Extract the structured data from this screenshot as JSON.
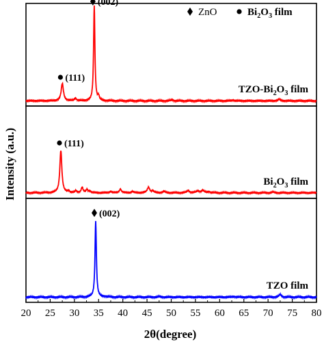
{
  "chart_data": {
    "type": "line",
    "xlabel": "2θ(degree)",
    "ylabel": "Intensity (a.u.)",
    "xlim": [
      20,
      80
    ],
    "x_ticks": [
      20,
      25,
      30,
      35,
      40,
      45,
      50,
      55,
      60,
      65,
      70,
      75,
      80
    ],
    "legend": {
      "position": "top-right",
      "entries": [
        {
          "marker": "diamond",
          "label": "ZnO"
        },
        {
          "marker": "circle",
          "label_main": "Bi",
          "label_sub": "2",
          "label_tail": "O",
          "label_sub2": "3",
          "label_end": " film"
        }
      ]
    },
    "panels": [
      {
        "color": "#ff0000",
        "label": {
          "main": "TZO-Bi",
          "sub": "2",
          "tail": "O",
          "sub2": "3",
          "end": " film"
        },
        "ylim": [
          0,
          1
        ],
        "baseline": 0.05,
        "peaks": [
          {
            "x": 27.5,
            "h": 0.17,
            "w": 0.28
          },
          {
            "x": 30.2,
            "h": 0.025,
            "w": 0.25
          },
          {
            "x": 34.1,
            "h": 0.93,
            "w": 0.16
          },
          {
            "x": 35.0,
            "h": 0.04,
            "w": 0.18
          },
          {
            "x": 50.2,
            "h": 0.01,
            "w": 0.3
          },
          {
            "x": 62.8,
            "h": 0.008,
            "w": 0.3
          },
          {
            "x": 72.3,
            "h": 0.015,
            "w": 0.3
          }
        ],
        "annotations": [
          {
            "x": 27.4,
            "marker": "circle",
            "text": "(111)",
            "y": 0.28
          },
          {
            "x": 34.1,
            "marker": "diamond",
            "text": "(002)",
            "y": 1.02
          }
        ]
      },
      {
        "color": "#ff0000",
        "label": {
          "main": "Bi",
          "sub": "2",
          "tail": "O",
          "sub2": "3",
          "end": " film"
        },
        "ylim": [
          0,
          1
        ],
        "baseline": 0.06,
        "peaks": [
          {
            "x": 27.2,
            "h": 0.46,
            "w": 0.25
          },
          {
            "x": 28.8,
            "h": 0.02,
            "w": 0.2
          },
          {
            "x": 30.3,
            "h": 0.02,
            "w": 0.2
          },
          {
            "x": 31.6,
            "h": 0.06,
            "w": 0.22
          },
          {
            "x": 32.6,
            "h": 0.035,
            "w": 0.22
          },
          {
            "x": 33.2,
            "h": 0.02,
            "w": 0.2
          },
          {
            "x": 37.5,
            "h": 0.015,
            "w": 0.25
          },
          {
            "x": 39.5,
            "h": 0.04,
            "w": 0.25
          },
          {
            "x": 42.0,
            "h": 0.015,
            "w": 0.25
          },
          {
            "x": 45.3,
            "h": 0.06,
            "w": 0.3
          },
          {
            "x": 46.2,
            "h": 0.02,
            "w": 0.25
          },
          {
            "x": 48.5,
            "h": 0.015,
            "w": 0.3
          },
          {
            "x": 53.5,
            "h": 0.025,
            "w": 0.3
          },
          {
            "x": 55.5,
            "h": 0.02,
            "w": 0.35
          },
          {
            "x": 56.5,
            "h": 0.025,
            "w": 0.35
          },
          {
            "x": 57.8,
            "h": 0.012,
            "w": 0.3
          },
          {
            "x": 71.0,
            "h": 0.008,
            "w": 0.3
          }
        ],
        "annotations": [
          {
            "x": 27.2,
            "marker": "circle",
            "text": "(111)",
            "y": 0.6
          }
        ]
      },
      {
        "color": "#0000ff",
        "label": {
          "main": "TZO film",
          "sub": "",
          "tail": "",
          "sub2": "",
          "end": ""
        },
        "ylim": [
          0,
          1
        ],
        "baseline": 0.05,
        "peaks": [
          {
            "x": 34.4,
            "h": 0.73,
            "w": 0.17
          },
          {
            "x": 36.3,
            "h": 0.006,
            "w": 0.3
          },
          {
            "x": 47.5,
            "h": 0.005,
            "w": 0.3
          },
          {
            "x": 62.9,
            "h": 0.006,
            "w": 0.3
          },
          {
            "x": 72.5,
            "h": 0.025,
            "w": 0.3
          }
        ],
        "annotations": [
          {
            "x": 34.4,
            "marker": "diamond",
            "text": "(002)",
            "y": 0.86
          }
        ]
      }
    ]
  }
}
